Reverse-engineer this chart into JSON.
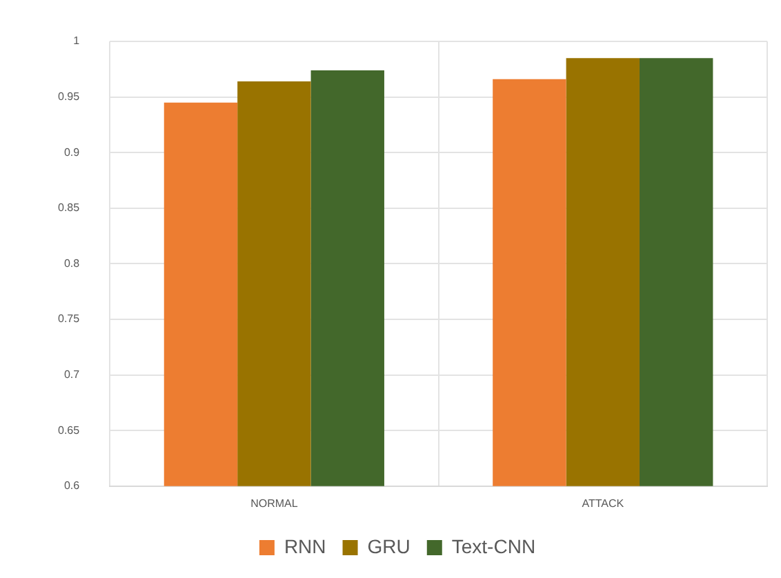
{
  "chart_data": {
    "type": "bar",
    "categories": [
      "NORMAL",
      "ATTACK"
    ],
    "series": [
      {
        "name": "RNN",
        "color": "#ed7d31",
        "values": [
          0.945,
          0.966
        ]
      },
      {
        "name": "GRU",
        "color": "#997300",
        "values": [
          0.964,
          0.985
        ]
      },
      {
        "name": "Text-CNN",
        "color": "#43682b",
        "values": [
          0.974,
          0.985
        ]
      }
    ],
    "ylim": [
      0.6,
      1
    ],
    "yticks": [
      0.6,
      0.65,
      0.7,
      0.75,
      0.8,
      0.85,
      0.9,
      0.95,
      1
    ],
    "grid": true,
    "legend": "bottom"
  }
}
